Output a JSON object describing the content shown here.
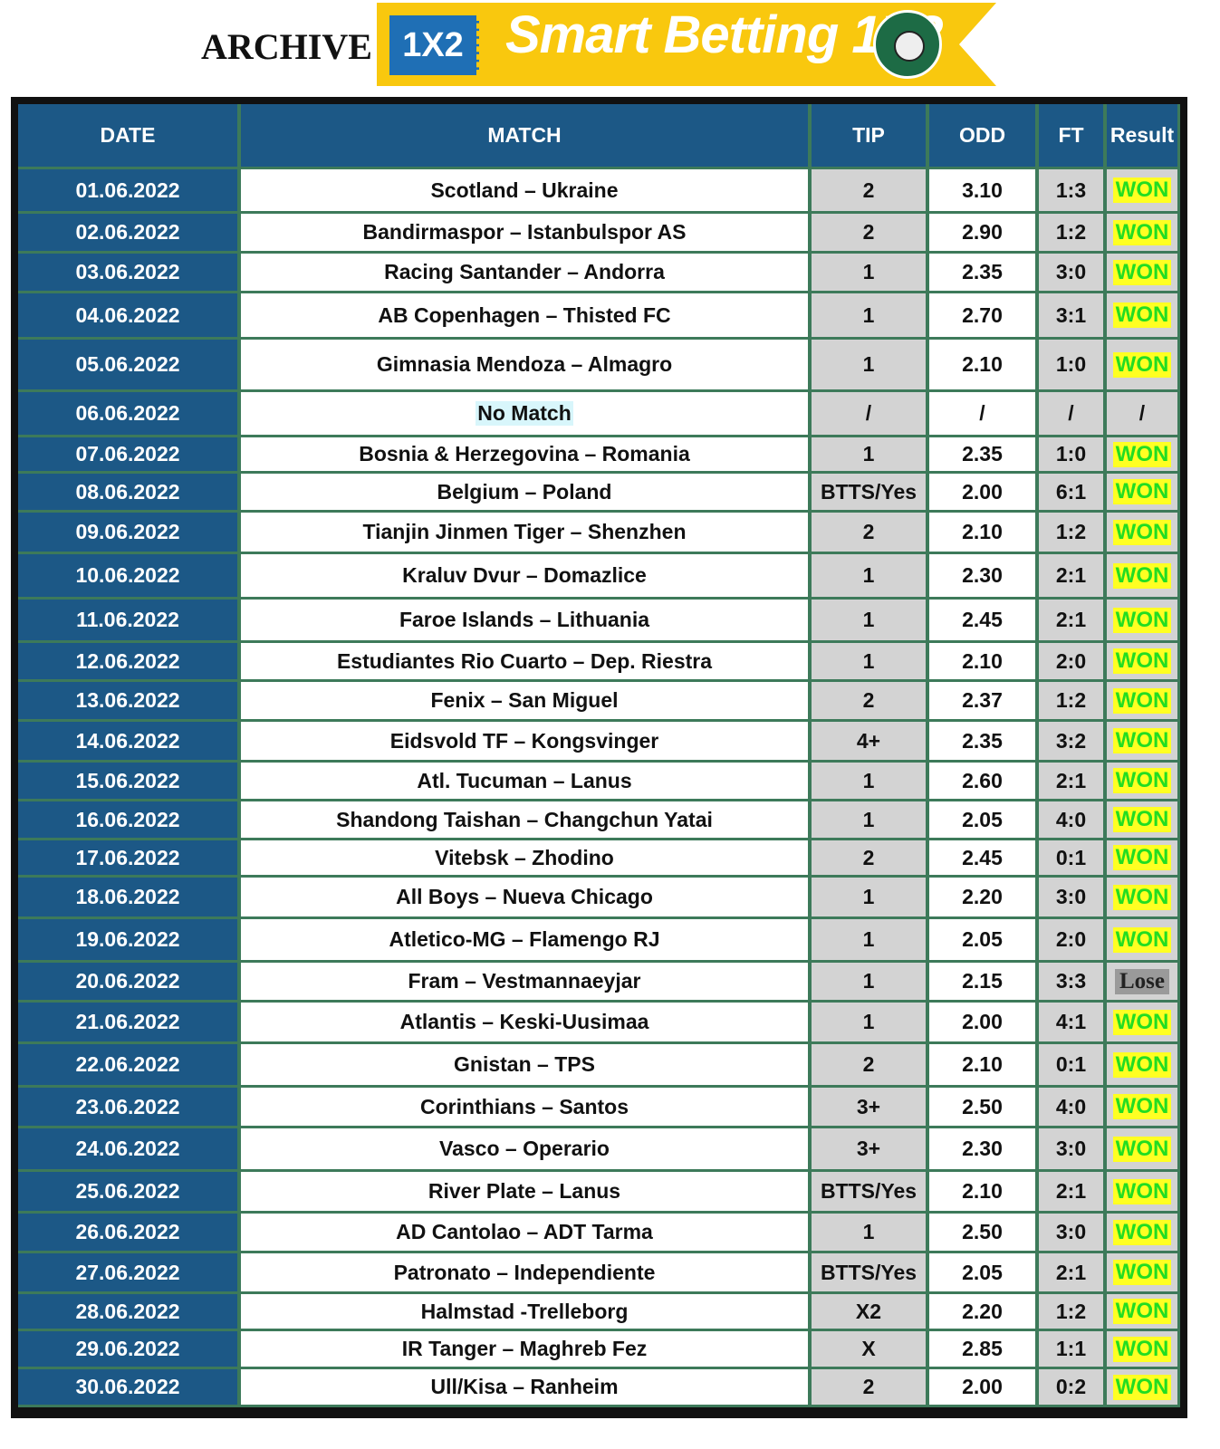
{
  "header": {
    "archive_label": "ARCHIVE",
    "logo_badge": "1X2",
    "brand": "Smart Betting 1X2",
    "seal_text": "SMART BETTING 1X2"
  },
  "colors": {
    "header_bg": "#1c5886",
    "grid": "#3d7a5a",
    "won_text": "#22dd22",
    "won_bg": "#ffff22",
    "lose_bg": "#9a9a9a",
    "banner": "#f9c80e"
  },
  "columns": [
    "DATE",
    "MATCH",
    "TIP",
    "ODD",
    "FT",
    "Result"
  ],
  "rows": [
    {
      "date": "01.06.2022",
      "match": "Scotland – Ukraine",
      "tip": "2",
      "odd": "3.10",
      "ft": "1:3",
      "result": "WON"
    },
    {
      "date": "02.06.2022",
      "match": "Bandirmaspor – Istanbulspor AS",
      "tip": "2",
      "odd": "2.90",
      "ft": "1:2",
      "result": "WON"
    },
    {
      "date": "03.06.2022",
      "match": "Racing Santander – Andorra",
      "tip": "1",
      "odd": "2.35",
      "ft": "3:0",
      "result": "WON"
    },
    {
      "date": "04.06.2022",
      "match": "AB Copenhagen – Thisted FC",
      "tip": "1",
      "odd": "2.70",
      "ft": "3:1",
      "result": "WON"
    },
    {
      "date": "05.06.2022",
      "match": "Gimnasia Mendoza – Almagro",
      "tip": "1",
      "odd": "2.10",
      "ft": "1:0",
      "result": "WON"
    },
    {
      "date": "06.06.2022",
      "match": "No Match",
      "tip": "/",
      "odd": "/",
      "ft": "/",
      "result": "/"
    },
    {
      "date": "07.06.2022",
      "match": "Bosnia & Herzegovina – Romania",
      "tip": "1",
      "odd": "2.35",
      "ft": "1:0",
      "result": "WON"
    },
    {
      "date": "08.06.2022",
      "match": "Belgium – Poland",
      "tip": "BTTS/Yes",
      "odd": "2.00",
      "ft": "6:1",
      "result": "WON"
    },
    {
      "date": "09.06.2022",
      "match": "Tianjin Jinmen Tiger – Shenzhen",
      "tip": "2",
      "odd": "2.10",
      "ft": "1:2",
      "result": "WON"
    },
    {
      "date": "10.06.2022",
      "match": "Kraluv Dvur – Domazlice",
      "tip": "1",
      "odd": "2.30",
      "ft": "2:1",
      "result": "WON"
    },
    {
      "date": "11.06.2022",
      "match": "Faroe Islands – Lithuania",
      "tip": "1",
      "odd": "2.45",
      "ft": "2:1",
      "result": "WON"
    },
    {
      "date": "12.06.2022",
      "match": "Estudiantes Rio Cuarto – Dep. Riestra",
      "tip": "1",
      "odd": "2.10",
      "ft": "2:0",
      "result": "WON"
    },
    {
      "date": "13.06.2022",
      "match": "Fenix – San Miguel",
      "tip": "2",
      "odd": "2.37",
      "ft": "1:2",
      "result": "WON"
    },
    {
      "date": "14.06.2022",
      "match": "Eidsvold TF – Kongsvinger",
      "tip": "4+",
      "odd": "2.35",
      "ft": "3:2",
      "result": "WON"
    },
    {
      "date": "15.06.2022",
      "match": "Atl. Tucuman – Lanus",
      "tip": "1",
      "odd": "2.60",
      "ft": "2:1",
      "result": "WON"
    },
    {
      "date": "16.06.2022",
      "match": "Shandong Taishan – Changchun Yatai",
      "tip": "1",
      "odd": "2.05",
      "ft": "4:0",
      "result": "WON"
    },
    {
      "date": "17.06.2022",
      "match": "Vitebsk – Zhodino",
      "tip": "2",
      "odd": "2.45",
      "ft": "0:1",
      "result": "WON"
    },
    {
      "date": "18.06.2022",
      "match": "All Boys – Nueva Chicago",
      "tip": "1",
      "odd": "2.20",
      "ft": "3:0",
      "result": "WON"
    },
    {
      "date": "19.06.2022",
      "match": "Atletico-MG – Flamengo RJ",
      "tip": "1",
      "odd": "2.05",
      "ft": "2:0",
      "result": "WON"
    },
    {
      "date": "20.06.2022",
      "match": "Fram – Vestmannaeyjar",
      "tip": "1",
      "odd": "2.15",
      "ft": "3:3",
      "result": "Lose"
    },
    {
      "date": "21.06.2022",
      "match": "Atlantis – Keski-Uusimaa",
      "tip": "1",
      "odd": "2.00",
      "ft": "4:1",
      "result": "WON"
    },
    {
      "date": "22.06.2022",
      "match": "Gnistan – TPS",
      "tip": "2",
      "odd": "2.10",
      "ft": "0:1",
      "result": "WON"
    },
    {
      "date": "23.06.2022",
      "match": "Corinthians – Santos",
      "tip": "3+",
      "odd": "2.50",
      "ft": "4:0",
      "result": "WON"
    },
    {
      "date": "24.06.2022",
      "match": "Vasco – Operario",
      "tip": "3+",
      "odd": "2.30",
      "ft": "3:0",
      "result": "WON"
    },
    {
      "date": "25.06.2022",
      "match": "River Plate – Lanus",
      "tip": "BTTS/Yes",
      "odd": "2.10",
      "ft": "2:1",
      "result": "WON"
    },
    {
      "date": "26.06.2022",
      "match": "AD Cantolao – ADT Tarma",
      "tip": "1",
      "odd": "2.50",
      "ft": "3:0",
      "result": "WON"
    },
    {
      "date": "27.06.2022",
      "match": "Patronato – Independiente",
      "tip": "BTTS/Yes",
      "odd": "2.05",
      "ft": "2:1",
      "result": "WON"
    },
    {
      "date": "28.06.2022",
      "match": "Halmstad -Trelleborg",
      "tip": "X2",
      "odd": "2.20",
      "ft": "1:2",
      "result": "WON"
    },
    {
      "date": "29.06.2022",
      "match": "IR Tanger – Maghreb Fez",
      "tip": "X",
      "odd": "2.85",
      "ft": "1:1",
      "result": "WON"
    },
    {
      "date": "30.06.2022",
      "match": "Ull/Kisa – Ranheim",
      "tip": "2",
      "odd": "2.00",
      "ft": "0:2",
      "result": "WON"
    }
  ]
}
